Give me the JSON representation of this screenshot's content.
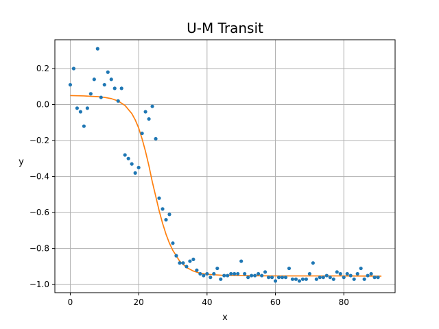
{
  "chart_data": {
    "type": "scatter",
    "title": "U-M Transit",
    "xlabel": "x",
    "ylabel": "y",
    "xlim": [
      -4.5,
      95
    ],
    "ylim": [
      -1.045,
      0.36
    ],
    "xticks": [
      0,
      20,
      40,
      60,
      80
    ],
    "xtick_labels": [
      "0",
      "20",
      "40",
      "60",
      "80"
    ],
    "yticks": [
      -1.0,
      -0.8,
      -0.6,
      -0.4,
      -0.2,
      0.0,
      0.2
    ],
    "ytick_labels": [
      "−1.0",
      "−0.8",
      "−0.6",
      "−0.4",
      "−0.2",
      "0.0",
      "0.2"
    ],
    "grid": true,
    "colors": {
      "points": "#1f77b4",
      "fit": "#ff7f0e",
      "grid": "#b0b0b0"
    },
    "series": [
      {
        "kind": "points",
        "x": [
          0,
          1,
          2,
          3,
          4,
          5,
          6,
          7,
          8,
          9,
          10,
          11,
          12,
          13,
          14,
          15,
          16,
          17,
          18,
          19,
          20,
          21,
          22,
          23,
          24,
          25,
          26,
          27,
          28,
          29,
          30,
          31,
          32,
          33,
          34,
          35,
          36,
          37,
          38,
          39,
          40,
          41,
          42,
          43,
          44,
          45,
          46,
          47,
          48,
          49,
          50,
          51,
          52,
          53,
          54,
          55,
          56,
          57,
          58,
          59,
          60,
          61,
          62,
          63,
          64,
          65,
          66,
          67,
          68,
          69,
          70,
          71,
          72,
          73,
          74,
          75,
          76,
          77,
          78,
          79,
          80,
          81,
          82,
          83,
          84,
          85,
          86,
          87,
          88,
          89,
          90
        ],
        "y": [
          0.11,
          0.2,
          -0.02,
          -0.04,
          -0.12,
          -0.02,
          0.06,
          0.14,
          0.31,
          0.04,
          0.11,
          0.18,
          0.14,
          0.09,
          0.02,
          0.09,
          -0.28,
          -0.3,
          -0.33,
          -0.38,
          -0.35,
          -0.16,
          -0.04,
          -0.08,
          -0.01,
          -0.19,
          -0.52,
          -0.58,
          -0.64,
          -0.61,
          -0.77,
          -0.84,
          -0.88,
          -0.88,
          -0.9,
          -0.87,
          -0.86,
          -0.92,
          -0.94,
          -0.95,
          -0.94,
          -0.96,
          -0.94,
          -0.91,
          -0.97,
          -0.95,
          -0.95,
          -0.94,
          -0.94,
          -0.94,
          -0.87,
          -0.94,
          -0.96,
          -0.95,
          -0.95,
          -0.94,
          -0.95,
          -0.93,
          -0.96,
          -0.96,
          -0.98,
          -0.96,
          -0.96,
          -0.96,
          -0.91,
          -0.97,
          -0.97,
          -0.98,
          -0.97,
          -0.97,
          -0.94,
          -0.88,
          -0.97,
          -0.96,
          -0.96,
          -0.95,
          -0.96,
          -0.97,
          -0.93,
          -0.94,
          -0.96,
          -0.94,
          -0.95,
          -0.97,
          -0.94,
          -0.91,
          -0.97,
          -0.95,
          -0.94,
          -0.96,
          -0.96
        ]
      },
      {
        "kind": "line",
        "x": [
          0,
          4,
          8,
          10,
          12,
          14,
          16,
          18,
          19,
          20,
          21,
          22,
          23,
          24,
          25,
          26,
          27,
          28,
          29,
          30,
          32,
          34,
          36,
          38,
          40,
          44,
          50,
          60,
          70,
          80,
          91
        ],
        "y": [
          0.05,
          0.048,
          0.044,
          0.04,
          0.033,
          0.02,
          -0.005,
          -0.05,
          -0.085,
          -0.13,
          -0.19,
          -0.26,
          -0.34,
          -0.43,
          -0.51,
          -0.59,
          -0.66,
          -0.72,
          -0.77,
          -0.81,
          -0.87,
          -0.905,
          -0.925,
          -0.937,
          -0.943,
          -0.948,
          -0.95,
          -0.952,
          -0.952,
          -0.952,
          -0.953
        ]
      }
    ]
  }
}
